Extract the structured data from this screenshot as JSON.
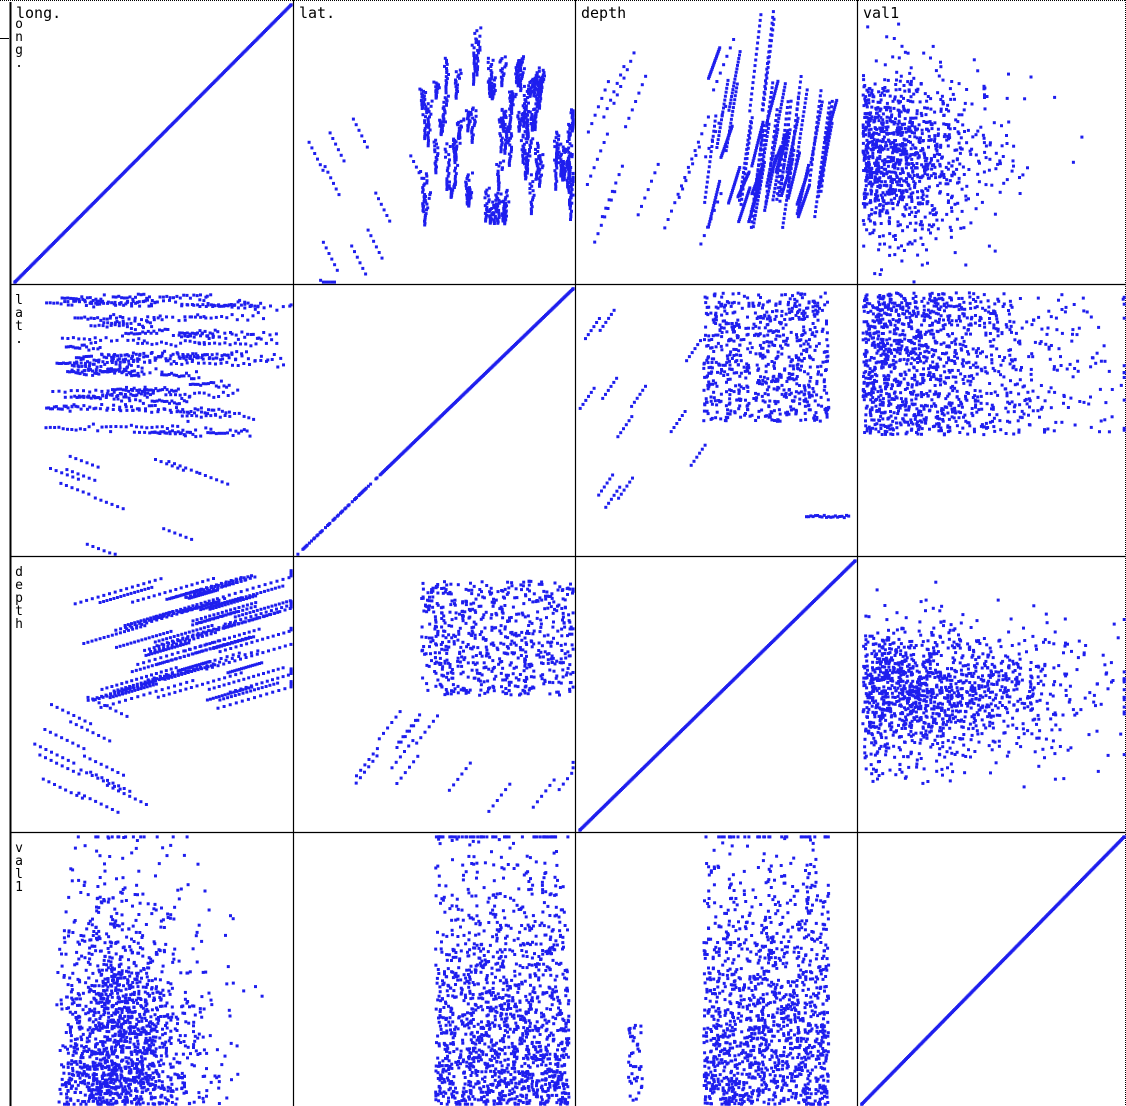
{
  "chart_data": {
    "type": "scatter",
    "subtype": "scatterplot-matrix",
    "variables": [
      "long.",
      "lat.",
      "depth",
      "val1"
    ],
    "column_labels": [
      "long.",
      "lat.",
      "depth",
      "val1"
    ],
    "row_labels": [
      "long.",
      "lat.",
      "depth",
      "val1"
    ],
    "point_color": "#1e1eee",
    "frame_color": "#000000",
    "background": "#ffffff",
    "grid": false,
    "legend": "none",
    "panels": [
      {
        "row": 0,
        "col": 0,
        "x": "long.",
        "y": "long.",
        "kind": "identity"
      },
      {
        "row": 0,
        "col": 1,
        "x": "lat.",
        "y": "long.",
        "kind": "scatter"
      },
      {
        "row": 0,
        "col": 2,
        "x": "depth",
        "y": "long.",
        "kind": "scatter"
      },
      {
        "row": 0,
        "col": 3,
        "x": "val1",
        "y": "long.",
        "kind": "scatter"
      },
      {
        "row": 1,
        "col": 0,
        "x": "long.",
        "y": "lat.",
        "kind": "scatter"
      },
      {
        "row": 1,
        "col": 1,
        "x": "lat.",
        "y": "lat.",
        "kind": "identity"
      },
      {
        "row": 1,
        "col": 2,
        "x": "depth",
        "y": "lat.",
        "kind": "scatter"
      },
      {
        "row": 1,
        "col": 3,
        "x": "val1",
        "y": "lat.",
        "kind": "scatter"
      },
      {
        "row": 2,
        "col": 0,
        "x": "long.",
        "y": "depth",
        "kind": "scatter"
      },
      {
        "row": 2,
        "col": 1,
        "x": "lat.",
        "y": "depth",
        "kind": "scatter"
      },
      {
        "row": 2,
        "col": 2,
        "x": "depth",
        "y": "depth",
        "kind": "identity"
      },
      {
        "row": 2,
        "col": 3,
        "x": "val1",
        "y": "depth",
        "kind": "scatter"
      },
      {
        "row": 3,
        "col": 0,
        "x": "long.",
        "y": "val1",
        "kind": "scatter"
      },
      {
        "row": 3,
        "col": 1,
        "x": "lat.",
        "y": "val1",
        "kind": "scatter"
      },
      {
        "row": 3,
        "col": 2,
        "x": "depth",
        "y": "val1",
        "kind": "scatter"
      },
      {
        "row": 3,
        "col": 3,
        "x": "val1",
        "y": "val1",
        "kind": "identity"
      }
    ]
  }
}
